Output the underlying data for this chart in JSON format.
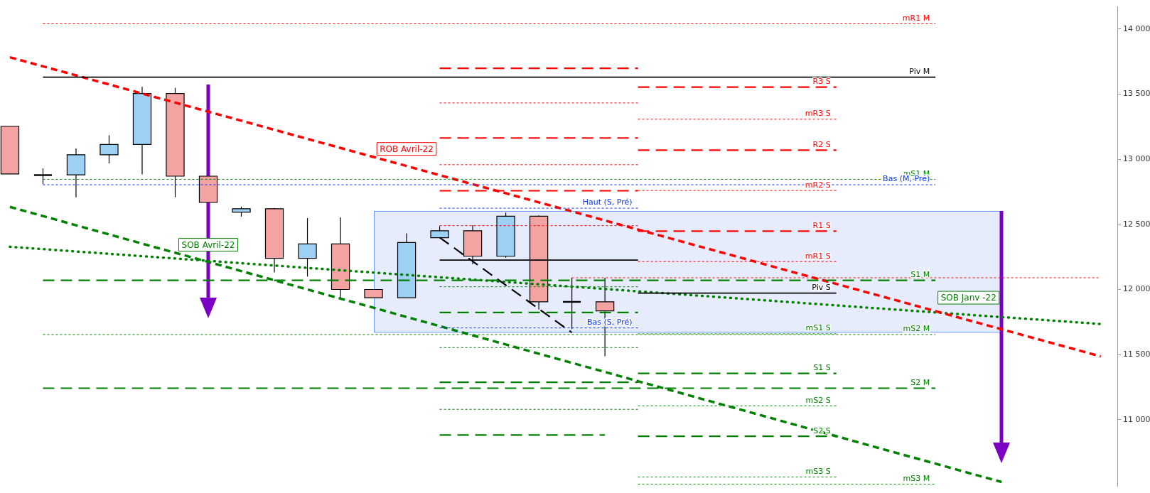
{
  "chart_data": {
    "type": "candlestick",
    "grid": false,
    "legend": false,
    "tick_labels": "y",
    "categories": [
      null,
      null,
      null,
      null,
      null,
      null,
      null,
      null,
      null,
      null,
      null,
      null,
      null,
      null,
      null,
      null,
      null,
      null,
      null,
      null,
      null,
      null,
      null,
      null,
      null,
      null,
      null,
      null,
      null,
      null,
      null,
      null,
      null,
      null
    ],
    "ohlc": [
      [
        13253,
        13253,
        12887,
        12887
      ],
      [
        12878,
        12929,
        12809,
        12878
      ],
      [
        12880,
        13083,
        12708,
        13034
      ],
      [
        13034,
        13184,
        12968,
        13113
      ],
      [
        13113,
        13555,
        12883,
        13505
      ],
      [
        13505,
        13548,
        12708,
        12870
      ],
      [
        12870,
        12870,
        12668,
        12668
      ],
      [
        12594,
        12636,
        12560,
        12620
      ],
      [
        12620,
        12626,
        12131,
        12239
      ],
      [
        12239,
        12548,
        12099,
        12350
      ],
      [
        12350,
        12553,
        11935,
        12000
      ],
      [
        12000,
        12000,
        11937,
        11937
      ],
      [
        11937,
        12431,
        11937,
        12361
      ],
      [
        12398,
        12486,
        12398,
        12451
      ],
      [
        12451,
        12493,
        12194,
        12255
      ],
      [
        12255,
        12590,
        12244,
        12562
      ],
      [
        12562,
        12569,
        11846,
        11905
      ],
      [
        11905,
        12090,
        11696,
        11905
      ],
      [
        11905,
        12090,
        11488,
        11836
      ],
      null,
      null,
      null,
      null,
      null,
      null,
      null,
      null,
      null,
      null,
      null,
      null,
      null,
      null,
      null
    ],
    "colors": [
      "#f4a3a3",
      "#000000",
      "#9dd0f3",
      "#9dd0f3",
      "#9dd0f3",
      "#f4a3a3",
      "#f4a3a3",
      "#9dd0f3",
      "#f4a3a3",
      "#9dd0f3",
      "#f4a3a3",
      "#f4a3a3",
      "#9dd0f3",
      "#9dd0f3",
      "#f4a3a3",
      "#9dd0f3",
      "#f4a3a3",
      "#000000",
      "#f4a3a3",
      null,
      null,
      null,
      null,
      null,
      null,
      null,
      null,
      null,
      null,
      null,
      null,
      null,
      null,
      null
    ],
    "ylim": [
      10490,
      14170
    ],
    "yticks": [
      {
        "value": 11000,
        "label": "11 000"
      },
      {
        "value": 11500,
        "label": "11 500"
      },
      {
        "value": 12000,
        "label": "12 000"
      },
      {
        "value": 12500,
        "label": "12 500"
      },
      {
        "value": 13000,
        "label": "13 000"
      },
      {
        "value": 13500,
        "label": "13 500"
      },
      {
        "value": 14000,
        "label": "14 000"
      }
    ],
    "series": [
      {
        "type": "line",
        "name": "mR1 M",
        "color": "#ff0000",
        "line_style": "dotted",
        "values": [
          null,
          14040,
          14040,
          14040,
          14040,
          14040,
          14040,
          14040,
          14040,
          14040,
          14040,
          14040,
          14040,
          14040,
          14040,
          14040,
          14040,
          14040,
          14040,
          14040,
          14040,
          14040,
          14040,
          14040,
          14040,
          14040,
          14040,
          14040,
          14040,
          null,
          null,
          null,
          null,
          null
        ]
      },
      {
        "type": "line",
        "name": "Piv M",
        "color": "#000000",
        "line_style": "solid",
        "values": [
          null,
          13630,
          13630,
          13630,
          13630,
          13630,
          13630,
          13630,
          13630,
          13630,
          13630,
          13630,
          13630,
          13630,
          13630,
          13630,
          13630,
          13630,
          13630,
          13630,
          13630,
          13630,
          13630,
          13630,
          13630,
          13630,
          13630,
          13630,
          13630,
          null,
          null,
          null,
          null,
          null
        ]
      },
      {
        "type": "line",
        "name": "mS1 M",
        "color": "#008000",
        "line_style": "dotted",
        "values": [
          null,
          12846,
          12846,
          12846,
          12846,
          12846,
          12846,
          12846,
          12846,
          12846,
          12846,
          12846,
          12846,
          12846,
          12846,
          12846,
          12846,
          12846,
          12846,
          12846,
          12846,
          12846,
          12846,
          12846,
          12846,
          12846,
          12846,
          12846,
          12846,
          null,
          null,
          null,
          null,
          null
        ]
      },
      {
        "type": "line",
        "name": "Bas (M, Pré)",
        "color": "#0033ff",
        "line_style": "dotted",
        "values": [
          null,
          12804,
          12804,
          12804,
          12804,
          12804,
          12804,
          12804,
          12804,
          12804,
          12804,
          12804,
          12804,
          12804,
          12804,
          12804,
          12804,
          12804,
          12804,
          12804,
          12804,
          12804,
          12804,
          12804,
          12804,
          12804,
          12804,
          12804,
          12804,
          null,
          null,
          null,
          null,
          null
        ]
      },
      {
        "type": "line",
        "name": "S1 M",
        "color": "#008000",
        "line_style": "dashed",
        "values": [
          null,
          12070,
          12070,
          12070,
          12070,
          12070,
          12070,
          12070,
          12070,
          12070,
          12070,
          12070,
          12070,
          12070,
          12070,
          12070,
          12070,
          12070,
          12070,
          12070,
          12070,
          12070,
          12070,
          12070,
          12070,
          12070,
          12070,
          12070,
          12070,
          null,
          null,
          null,
          null,
          null
        ]
      },
      {
        "type": "line",
        "name": "mS2 M",
        "color": "#008000",
        "line_style": "dotted",
        "values": [
          null,
          11654,
          11654,
          11654,
          11654,
          11654,
          11654,
          11654,
          11654,
          11654,
          11654,
          11654,
          11654,
          11654,
          11654,
          11654,
          11654,
          11654,
          11654,
          11654,
          11654,
          11654,
          11654,
          11654,
          11654,
          11654,
          11654,
          11654,
          11654,
          null,
          null,
          null,
          null,
          null
        ]
      },
      {
        "type": "line",
        "name": "S2 M",
        "color": "#008000",
        "line_style": "dashed",
        "values": [
          null,
          11242,
          11242,
          11242,
          11242,
          11242,
          11242,
          11242,
          11242,
          11242,
          11242,
          11242,
          11242,
          11242,
          11242,
          11242,
          11242,
          11242,
          11242,
          11242,
          11242,
          11242,
          11242,
          11242,
          11242,
          11242,
          11242,
          11242,
          11242,
          null,
          null,
          null,
          null,
          null
        ]
      },
      {
        "type": "line",
        "name": "mS3 M",
        "color": "#008000",
        "line_style": "dotted",
        "values": [
          null,
          null,
          null,
          null,
          null,
          null,
          null,
          null,
          null,
          null,
          null,
          null,
          null,
          null,
          null,
          null,
          null,
          null,
          null,
          10505,
          10505,
          10505,
          10505,
          10505,
          10505,
          10505,
          10505,
          10505,
          10505,
          null,
          null,
          null,
          null,
          null
        ]
      },
      {
        "type": "line",
        "color": "#ff0000",
        "line_style": "dotted",
        "values": [
          null,
          null,
          null,
          null,
          null,
          null,
          null,
          null,
          null,
          null,
          null,
          null,
          null,
          null,
          null,
          null,
          null,
          12090,
          12090,
          12090,
          12090,
          12090,
          12090,
          12090,
          12090,
          12090,
          12090,
          12090,
          12090,
          12090,
          12090,
          12090,
          12090,
          12090
        ]
      },
      {
        "type": "line",
        "color": "#ff0000",
        "line_style": "dashed",
        "values": [
          null,
          null,
          null,
          null,
          null,
          null,
          null,
          null,
          null,
          null,
          null,
          null,
          null,
          13698,
          13698,
          13698,
          13698,
          13698,
          13698,
          13698,
          null,
          null,
          null,
          null,
          null,
          null,
          null,
          null,
          null,
          null,
          null,
          null,
          null,
          null
        ]
      },
      {
        "type": "line",
        "color": "#ff0000",
        "line_style": "dotted",
        "values": [
          null,
          null,
          null,
          null,
          null,
          null,
          null,
          null,
          null,
          null,
          null,
          null,
          null,
          13432,
          13432,
          13432,
          13432,
          13432,
          13432,
          13432,
          null,
          null,
          null,
          null,
          null,
          null,
          null,
          null,
          null,
          null,
          null,
          null,
          null,
          null
        ]
      },
      {
        "type": "line",
        "color": "#ff0000",
        "line_style": "dashed",
        "values": [
          null,
          null,
          null,
          null,
          null,
          null,
          null,
          null,
          null,
          null,
          null,
          null,
          null,
          13163,
          13163,
          13163,
          13163,
          13163,
          13163,
          13163,
          null,
          null,
          null,
          null,
          null,
          null,
          null,
          null,
          null,
          null,
          null,
          null,
          null,
          null
        ]
      },
      {
        "type": "line",
        "color": "#ff0000",
        "line_style": "dotted",
        "values": [
          null,
          null,
          null,
          null,
          null,
          null,
          null,
          null,
          null,
          null,
          null,
          null,
          null,
          12958,
          12958,
          12958,
          12958,
          12958,
          12958,
          12958,
          null,
          null,
          null,
          null,
          null,
          null,
          null,
          null,
          null,
          null,
          null,
          null,
          null,
          null
        ]
      },
      {
        "type": "line",
        "color": "#ff0000",
        "line_style": "dashed",
        "values": [
          null,
          null,
          null,
          null,
          null,
          null,
          null,
          null,
          null,
          null,
          null,
          null,
          null,
          12758,
          12758,
          12758,
          12758,
          12758,
          12758,
          12758,
          null,
          null,
          null,
          null,
          null,
          null,
          null,
          null,
          null,
          null,
          null,
          null,
          null,
          null
        ]
      },
      {
        "type": "line",
        "name": "Haut (S, Pré)",
        "color": "#0033ff",
        "line_style": "dotted",
        "values": [
          null,
          null,
          null,
          null,
          null,
          null,
          null,
          null,
          null,
          null,
          null,
          null,
          null,
          12624,
          12624,
          12624,
          12624,
          12624,
          12624,
          12624,
          null,
          null,
          null,
          null,
          null,
          null,
          null,
          null,
          null,
          null,
          null,
          null,
          null,
          null
        ]
      },
      {
        "type": "line",
        "color": "#ff0000",
        "line_style": "dotted",
        "values": [
          null,
          null,
          null,
          null,
          null,
          null,
          null,
          null,
          null,
          null,
          null,
          null,
          null,
          12490,
          12490,
          12490,
          12490,
          12490,
          12490,
          12490,
          null,
          null,
          null,
          null,
          null,
          null,
          null,
          null,
          null,
          null,
          null,
          null,
          null,
          null
        ]
      },
      {
        "type": "line",
        "color": "#000000",
        "line_style": "solid",
        "values": [
          null,
          null,
          null,
          null,
          null,
          null,
          null,
          null,
          null,
          null,
          null,
          null,
          null,
          12226,
          12226,
          12226,
          12226,
          12226,
          12226,
          12226,
          null,
          null,
          null,
          null,
          null,
          null,
          null,
          null,
          null,
          null,
          null,
          null,
          null,
          null
        ]
      },
      {
        "type": "line",
        "color": "#008000",
        "line_style": "dotted",
        "values": [
          null,
          null,
          null,
          null,
          null,
          null,
          null,
          null,
          null,
          null,
          null,
          null,
          null,
          12021,
          12021,
          12021,
          12021,
          12021,
          12021,
          12021,
          null,
          null,
          null,
          null,
          null,
          null,
          null,
          null,
          null,
          null,
          null,
          null,
          null,
          null
        ]
      },
      {
        "type": "line",
        "color": "#008000",
        "line_style": "dashed",
        "values": [
          null,
          null,
          null,
          null,
          null,
          null,
          null,
          null,
          null,
          null,
          null,
          null,
          null,
          11823,
          11823,
          11823,
          11823,
          11823,
          11823,
          11823,
          null,
          null,
          null,
          null,
          null,
          null,
          null,
          null,
          null,
          null,
          null,
          null,
          null,
          null
        ]
      },
      {
        "type": "line",
        "name": "Bas (S, Pré)",
        "color": "#0033ff",
        "line_style": "dotted",
        "values": [
          null,
          null,
          null,
          null,
          null,
          null,
          null,
          null,
          null,
          null,
          null,
          null,
          null,
          11705,
          11705,
          11705,
          11705,
          11705,
          11705,
          11705,
          null,
          null,
          null,
          null,
          null,
          null,
          null,
          null,
          null,
          null,
          null,
          null,
          null,
          null
        ]
      },
      {
        "type": "line",
        "color": "#008000",
        "line_style": "dotted",
        "values": [
          null,
          null,
          null,
          null,
          null,
          null,
          null,
          null,
          null,
          null,
          null,
          null,
          null,
          11554,
          11554,
          11554,
          11554,
          11554,
          11554,
          11554,
          null,
          null,
          null,
          null,
          null,
          null,
          null,
          null,
          null,
          null,
          null,
          null,
          null,
          null
        ]
      },
      {
        "type": "line",
        "color": "#008000",
        "line_style": "dashed",
        "values": [
          null,
          null,
          null,
          null,
          null,
          null,
          null,
          null,
          null,
          null,
          null,
          null,
          null,
          11288,
          11288,
          11288,
          11288,
          11288,
          11288,
          11288,
          null,
          null,
          null,
          null,
          null,
          null,
          null,
          null,
          null,
          null,
          null,
          null,
          null,
          null
        ]
      },
      {
        "type": "line",
        "color": "#008000",
        "line_style": "dotted",
        "values": [
          null,
          null,
          null,
          null,
          null,
          null,
          null,
          null,
          null,
          null,
          null,
          null,
          null,
          11080,
          11080,
          11080,
          11080,
          11080,
          11080,
          11080,
          null,
          null,
          null,
          null,
          null,
          null,
          null,
          null,
          null,
          null,
          null,
          null,
          null,
          null
        ]
      },
      {
        "type": "line",
        "color": "#008000",
        "line_style": "dashed",
        "values": [
          null,
          null,
          null,
          null,
          null,
          null,
          null,
          null,
          null,
          null,
          null,
          null,
          null,
          10883,
          10883,
          10883,
          10883,
          10883,
          10883,
          null,
          null,
          null,
          null,
          null,
          null,
          null,
          null,
          null,
          null,
          null,
          null,
          null,
          null,
          null
        ]
      },
      {
        "type": "line",
        "name": "R3 S",
        "color": "#ff0000",
        "line_style": "dashed",
        "values": [
          null,
          null,
          null,
          null,
          null,
          null,
          null,
          null,
          null,
          null,
          null,
          null,
          null,
          null,
          null,
          null,
          null,
          null,
          null,
          13554,
          13554,
          13554,
          13554,
          13554,
          13554,
          13554,
          null,
          null,
          null,
          null,
          null,
          null,
          null,
          null
        ]
      },
      {
        "type": "line",
        "name": "mR3 S",
        "color": "#ff0000",
        "line_style": "dotted",
        "values": [
          null,
          null,
          null,
          null,
          null,
          null,
          null,
          null,
          null,
          null,
          null,
          null,
          null,
          null,
          null,
          null,
          null,
          null,
          null,
          13307,
          13307,
          13307,
          13307,
          13307,
          13307,
          13307,
          null,
          null,
          null,
          null,
          null,
          null,
          null,
          null
        ]
      },
      {
        "type": "line",
        "name": "R2 S",
        "color": "#ff0000",
        "line_style": "dashed",
        "values": [
          null,
          null,
          null,
          null,
          null,
          null,
          null,
          null,
          null,
          null,
          null,
          null,
          null,
          null,
          null,
          null,
          null,
          null,
          null,
          13070,
          13070,
          13070,
          13070,
          13070,
          13070,
          13070,
          null,
          null,
          null,
          null,
          null,
          null,
          null,
          null
        ]
      },
      {
        "type": "line",
        "name": "mR2 S",
        "color": "#ff0000",
        "line_style": "dotted",
        "values": [
          null,
          null,
          null,
          null,
          null,
          null,
          null,
          null,
          null,
          null,
          null,
          null,
          null,
          null,
          null,
          null,
          null,
          null,
          null,
          12760,
          12760,
          12760,
          12760,
          12760,
          12760,
          12760,
          null,
          null,
          null,
          null,
          null,
          null,
          null,
          null
        ]
      },
      {
        "type": "line",
        "name": "R1 S",
        "color": "#ff0000",
        "line_style": "dashed",
        "values": [
          null,
          null,
          null,
          null,
          null,
          null,
          null,
          null,
          null,
          null,
          null,
          null,
          null,
          null,
          null,
          null,
          null,
          null,
          null,
          12448,
          12448,
          12448,
          12448,
          12448,
          12448,
          12448,
          null,
          null,
          null,
          null,
          null,
          null,
          null,
          null
        ]
      },
      {
        "type": "line",
        "name": "mR1 S",
        "color": "#ff0000",
        "line_style": "dotted",
        "values": [
          null,
          null,
          null,
          null,
          null,
          null,
          null,
          null,
          null,
          null,
          null,
          null,
          null,
          null,
          null,
          null,
          null,
          null,
          null,
          12214,
          12214,
          12214,
          12214,
          12214,
          12214,
          12214,
          null,
          null,
          null,
          null,
          null,
          null,
          null,
          null
        ]
      },
      {
        "type": "line",
        "name": "Piv S",
        "color": "#000000",
        "line_style": "solid",
        "values": [
          null,
          null,
          null,
          null,
          null,
          null,
          null,
          null,
          null,
          null,
          null,
          null,
          null,
          null,
          null,
          null,
          null,
          null,
          null,
          11972,
          11972,
          11972,
          11972,
          11972,
          11972,
          11972,
          null,
          null,
          null,
          null,
          null,
          null,
          null,
          null
        ]
      },
      {
        "type": "line",
        "name": "mS1 S",
        "color": "#008000",
        "line_style": "dotted",
        "values": [
          null,
          null,
          null,
          null,
          null,
          null,
          null,
          null,
          null,
          null,
          null,
          null,
          null,
          null,
          null,
          null,
          null,
          null,
          null,
          11660,
          11660,
          11660,
          11660,
          11660,
          11660,
          11660,
          null,
          null,
          null,
          null,
          null,
          null,
          null,
          null
        ]
      },
      {
        "type": "line",
        "name": "S1 S",
        "color": "#008000",
        "line_style": "dashed",
        "values": [
          null,
          null,
          null,
          null,
          null,
          null,
          null,
          null,
          null,
          null,
          null,
          null,
          null,
          null,
          null,
          null,
          null,
          null,
          null,
          11356,
          11356,
          11356,
          11356,
          11356,
          11356,
          11356,
          null,
          null,
          null,
          null,
          null,
          null,
          null,
          null
        ]
      },
      {
        "type": "line",
        "name": "mS2 S",
        "color": "#008000",
        "line_style": "dotted",
        "values": [
          null,
          null,
          null,
          null,
          null,
          null,
          null,
          null,
          null,
          null,
          null,
          null,
          null,
          null,
          null,
          null,
          null,
          null,
          null,
          11107,
          11107,
          11107,
          11107,
          11107,
          11107,
          11107,
          null,
          null,
          null,
          null,
          null,
          null,
          null,
          null
        ]
      },
      {
        "type": "line",
        "name": "S2 S",
        "color": "#008000",
        "line_style": "dashed",
        "values": [
          null,
          null,
          null,
          null,
          null,
          null,
          null,
          null,
          null,
          null,
          null,
          null,
          null,
          null,
          null,
          null,
          null,
          null,
          null,
          10873,
          10873,
          10873,
          10873,
          10873,
          10873,
          10873,
          null,
          null,
          null,
          null,
          null,
          null,
          null,
          null
        ]
      },
      {
        "type": "line",
        "name": "mS3 S",
        "color": "#008000",
        "line_style": "dotted",
        "values": [
          null,
          null,
          null,
          null,
          null,
          null,
          null,
          null,
          null,
          null,
          null,
          null,
          null,
          null,
          null,
          null,
          null,
          null,
          null,
          10560,
          10560,
          10560,
          10560,
          10560,
          10560,
          10560,
          null,
          null,
          null,
          null,
          null,
          null,
          null,
          null
        ]
      },
      {
        "type": "line",
        "color": "#000000",
        "line_style": "dashed",
        "values": [
          null,
          null,
          null,
          null,
          null,
          null,
          null,
          null,
          null,
          null,
          null,
          null,
          null,
          12399,
          12216,
          12034,
          11851,
          11669,
          null,
          null,
          null,
          null,
          null,
          null,
          null,
          null,
          null,
          null,
          null,
          null,
          null,
          null,
          null,
          null
        ]
      },
      {
        "type": "line",
        "name": "ROB Avril-22",
        "color": "#ff0000",
        "line_style": "dashed",
        "values": [
          13783,
          13713,
          13644,
          13574,
          13504,
          13435,
          13365,
          13296,
          13226,
          13156,
          13087,
          13017,
          12948,
          12878,
          12808,
          12739,
          12669,
          12600,
          12530,
          12460,
          12391,
          12321,
          12252,
          12182,
          12112,
          12043,
          11973,
          11904,
          11834,
          11764,
          11695,
          11625,
          11556,
          11486
        ]
      },
      {
        "type": "line",
        "name": "SOB Janv -22",
        "color": "#008000",
        "line_style": "dotted",
        "values": [
          12328,
          12310,
          12292,
          12274,
          12256,
          12238,
          12220,
          12202,
          12184,
          12166,
          12148,
          12130,
          12112,
          12094,
          12076,
          12058,
          12040,
          12022,
          12004,
          11986,
          11968,
          11950,
          11932,
          11914,
          11896,
          11878,
          11860,
          11842,
          11824,
          11806,
          11788,
          11771,
          11753,
          11735
        ]
      },
      {
        "type": "line",
        "name": "SOB Avril-22",
        "color": "#008000",
        "line_style": "dashed",
        "values": [
          12634,
          12564,
          12493,
          12423,
          12352,
          12282,
          12212,
          12141,
          12071,
          12000,
          11930,
          11860,
          11789,
          11719,
          11648,
          11578,
          11507,
          11437,
          11367,
          11296,
          11226,
          11155,
          11085,
          11015,
          10944,
          10874,
          10803,
          10733,
          10663,
          10592,
          10522,
          null,
          null,
          null
        ]
      }
    ]
  }
}
